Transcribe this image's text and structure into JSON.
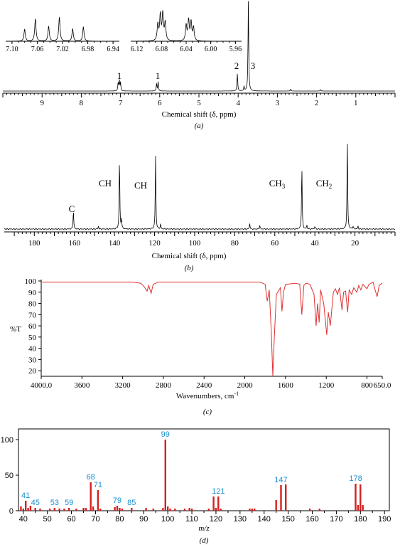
{
  "chart_data": [
    {
      "panel": "(a)",
      "type": "line",
      "spectrum": "1H NMR",
      "xlabel": "Chemical shift (δ, ppm)",
      "xlim": [
        10.0,
        0.0
      ],
      "x_ticks": [
        "9",
        "8",
        "7",
        "6",
        "5",
        "4",
        "3",
        "2",
        "1"
      ],
      "x_tick_values": [
        9,
        8,
        7,
        6,
        5,
        4,
        3,
        2,
        1
      ],
      "peaks": [
        {
          "x": 7.06,
          "h": 0.09,
          "label": "1"
        },
        {
          "x": 7.03,
          "h": 0.11
        },
        {
          "x": 7.0,
          "h": 0.09
        },
        {
          "x": 6.08,
          "h": 0.08,
          "label": "1"
        },
        {
          "x": 6.04,
          "h": 0.1
        },
        {
          "x": 4.02,
          "h": 0.19,
          "label": "2"
        },
        {
          "x": 3.74,
          "h": 0.98,
          "label": "3"
        },
        {
          "x": 3.85,
          "h": 0.05
        },
        {
          "x": 2.66,
          "h": 0.02
        },
        {
          "x": 1.9,
          "h": 0.015
        }
      ],
      "insets": [
        {
          "x_ticks": [
            "7.10",
            "7.06",
            "7.02",
            "6.98",
            "6.94"
          ],
          "x_tick_values": [
            7.1,
            7.06,
            7.02,
            6.98,
            6.94
          ],
          "xlim": [
            7.11,
            6.93
          ],
          "peaks": [
            {
              "x": 7.08,
              "h": 0.4
            },
            {
              "x": 7.063,
              "h": 0.75
            },
            {
              "x": 7.042,
              "h": 0.5
            },
            {
              "x": 7.025,
              "h": 0.8
            },
            {
              "x": 7.004,
              "h": 0.42
            },
            {
              "x": 6.987,
              "h": 0.48
            }
          ]
        },
        {
          "x_ticks": [
            "6.12",
            "6.08",
            "6.04",
            "6.00",
            "5.96"
          ],
          "x_tick_values": [
            6.12,
            6.08,
            6.04,
            6.0,
            5.96
          ],
          "xlim": [
            6.13,
            5.95
          ],
          "peaks": [
            {
              "x": 6.086,
              "h": 0.55
            },
            {
              "x": 6.082,
              "h": 0.85
            },
            {
              "x": 6.078,
              "h": 0.9
            },
            {
              "x": 6.074,
              "h": 0.6
            },
            {
              "x": 6.04,
              "h": 0.52
            },
            {
              "x": 6.036,
              "h": 0.68
            },
            {
              "x": 6.032,
              "h": 0.62
            },
            {
              "x": 6.028,
              "h": 0.45
            }
          ]
        }
      ]
    },
    {
      "panel": "(b)",
      "type": "line",
      "spectrum": "13C NMR",
      "xlabel": "Chemical shift (δ, ppm)",
      "xlim": [
        195,
        0
      ],
      "x_ticks": [
        "180",
        "160",
        "140",
        "120",
        "100",
        "80",
        "60",
        "40",
        "20"
      ],
      "x_tick_values": [
        180,
        160,
        140,
        120,
        100,
        80,
        60,
        40,
        20
      ],
      "peaks": [
        {
          "x": 160.5,
          "h": 0.2,
          "label": "C"
        },
        {
          "x": 148.0,
          "h": 0.03
        },
        {
          "x": 137.5,
          "h": 0.77,
          "label": "CH"
        },
        {
          "x": 136.5,
          "h": 0.1
        },
        {
          "x": 119.5,
          "h": 0.79,
          "label": "CH"
        },
        {
          "x": 117.0,
          "h": 0.05
        },
        {
          "x": 72.5,
          "h": 0.06
        },
        {
          "x": 67.5,
          "h": 0.04
        },
        {
          "x": 46.5,
          "h": 0.68,
          "label": "CH3"
        },
        {
          "x": 44.0,
          "h": 0.04
        },
        {
          "x": 40.0,
          "h": 0.03
        },
        {
          "x": 23.8,
          "h": 0.97,
          "label": "CH2"
        },
        {
          "x": 21.0,
          "h": 0.03
        },
        {
          "x": 18.5,
          "h": 0.03
        }
      ]
    },
    {
      "panel": "(c)",
      "type": "line",
      "spectrum": "IR",
      "xlabel": "Wavenumbers, cm-1",
      "ylabel": "%T",
      "xlim": [
        4000,
        650
      ],
      "ylim": [
        15,
        100
      ],
      "x_ticks": [
        "4000.0",
        "3600",
        "3200",
        "2800",
        "2400",
        "2000",
        "1600",
        "1200",
        "800",
        "650.0"
      ],
      "x_tick_values": [
        4000,
        3600,
        3200,
        2800,
        2400,
        2000,
        1600,
        1200,
        800,
        650
      ],
      "y_ticks": [
        100,
        90,
        80,
        70,
        60,
        50,
        40,
        30,
        20
      ],
      "color": "#e03030",
      "points": [
        [
          4000,
          99
        ],
        [
          3100,
          99
        ],
        [
          3020,
          98
        ],
        [
          2990,
          95
        ],
        [
          2960,
          91
        ],
        [
          2945,
          96
        ],
        [
          2920,
          89
        ],
        [
          2900,
          97
        ],
        [
          2850,
          99
        ],
        [
          1850,
          99
        ],
        [
          1800,
          97
        ],
        [
          1780,
          82
        ],
        [
          1760,
          92
        ],
        [
          1740,
          55
        ],
        [
          1725,
          15
        ],
        [
          1710,
          50
        ],
        [
          1690,
          88
        ],
        [
          1650,
          94
        ],
        [
          1635,
          73
        ],
        [
          1620,
          90
        ],
        [
          1600,
          97
        ],
        [
          1500,
          98
        ],
        [
          1460,
          97
        ],
        [
          1440,
          70
        ],
        [
          1420,
          96
        ],
        [
          1400,
          98
        ],
        [
          1360,
          97
        ],
        [
          1320,
          88
        ],
        [
          1300,
          60
        ],
        [
          1285,
          80
        ],
        [
          1270,
          63
        ],
        [
          1255,
          92
        ],
        [
          1225,
          80
        ],
        [
          1195,
          52
        ],
        [
          1180,
          72
        ],
        [
          1160,
          60
        ],
        [
          1130,
          90
        ],
        [
          1110,
          93
        ],
        [
          1090,
          88
        ],
        [
          1070,
          94
        ],
        [
          1045,
          74
        ],
        [
          1030,
          90
        ],
        [
          1010,
          91
        ],
        [
          990,
          72
        ],
        [
          975,
          92
        ],
        [
          950,
          88
        ],
        [
          930,
          94
        ],
        [
          900,
          90
        ],
        [
          880,
          96
        ],
        [
          860,
          92
        ],
        [
          840,
          97
        ],
        [
          800,
          93
        ],
        [
          780,
          97
        ],
        [
          740,
          99
        ],
        [
          720,
          92
        ],
        [
          700,
          86
        ],
        [
          680,
          96
        ],
        [
          650,
          98
        ]
      ]
    },
    {
      "panel": "(d)",
      "type": "bar",
      "spectrum": "Mass spectrum",
      "xlabel": "m/z",
      "xlim": [
        38,
        192
      ],
      "ylim": [
        0,
        115
      ],
      "x_ticks": [
        40,
        50,
        60,
        70,
        80,
        90,
        100,
        110,
        120,
        130,
        140,
        150,
        160,
        170,
        180,
        190
      ],
      "y_ticks": [
        0,
        50,
        100
      ],
      "bars": [
        [
          39,
          6
        ],
        [
          40,
          3
        ],
        [
          41,
          14
        ],
        [
          42,
          4
        ],
        [
          43,
          7
        ],
        [
          45,
          4
        ],
        [
          47,
          3
        ],
        [
          51,
          3
        ],
        [
          53,
          4
        ],
        [
          55,
          3
        ],
        [
          57,
          3
        ],
        [
          59,
          4
        ],
        [
          62,
          3
        ],
        [
          65,
          4
        ],
        [
          66,
          4
        ],
        [
          68,
          40
        ],
        [
          69,
          6
        ],
        [
          71,
          29
        ],
        [
          72,
          3
        ],
        [
          78,
          5
        ],
        [
          79,
          7
        ],
        [
          80,
          4
        ],
        [
          81,
          3
        ],
        [
          85,
          4
        ],
        [
          91,
          4
        ],
        [
          94,
          3
        ],
        [
          98,
          4
        ],
        [
          99,
          100
        ],
        [
          100,
          6
        ],
        [
          101,
          3
        ],
        [
          103,
          3
        ],
        [
          107,
          3
        ],
        [
          109,
          4
        ],
        [
          110,
          3
        ],
        [
          117,
          3
        ],
        [
          119,
          20
        ],
        [
          120,
          4
        ],
        [
          121,
          20
        ],
        [
          122,
          3
        ],
        [
          134,
          3
        ],
        [
          135,
          3
        ],
        [
          136,
          3
        ],
        [
          145,
          15
        ],
        [
          147,
          36
        ],
        [
          149,
          37
        ],
        [
          159,
          3
        ],
        [
          163,
          3
        ],
        [
          178,
          38
        ],
        [
          179,
          8
        ],
        [
          180,
          37
        ],
        [
          181,
          8
        ]
      ],
      "labels": [
        [
          41,
          "41"
        ],
        [
          45,
          "45"
        ],
        [
          53,
          "53"
        ],
        [
          59,
          "59"
        ],
        [
          68,
          "68"
        ],
        [
          71,
          "71"
        ],
        [
          79,
          "79"
        ],
        [
          85,
          "85"
        ],
        [
          99,
          "99"
        ],
        [
          121,
          "121"
        ],
        [
          147,
          "147"
        ],
        [
          178,
          "178"
        ]
      ],
      "bar_color": "#d42020",
      "label_color": "#1a8fd1"
    }
  ],
  "captions": {
    "a": "(a)",
    "b": "(b)",
    "c": "(c)",
    "d": "(d)"
  },
  "axis_labels": {
    "a_x": "Chemical shift (δ, ppm)",
    "b_x": "Chemical shift (δ, ppm)",
    "c_x": "Wavenumbers, cm",
    "c_x_sup": "-1",
    "c_y": "%T",
    "d_x": "m/z"
  },
  "peak_labels": {
    "a": [
      "1",
      "1",
      "2",
      "3"
    ],
    "b": [
      "C",
      "CH",
      "CH",
      "CH",
      "3",
      "CH",
      "2"
    ]
  }
}
